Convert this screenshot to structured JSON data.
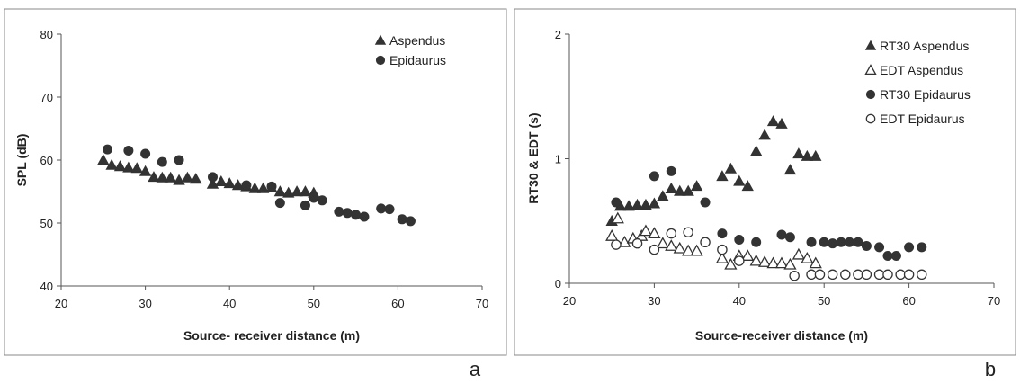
{
  "chart_data": [
    {
      "type": "scatter",
      "panel_label": "a",
      "xlabel": "Source- receiver distance (m)",
      "ylabel": "SPL (dB)",
      "xlim": [
        20,
        70
      ],
      "ylim": [
        40,
        80
      ],
      "xticks": [
        20,
        30,
        40,
        50,
        60,
        70
      ],
      "yticks": [
        40,
        50,
        60,
        70,
        80
      ],
      "legend_position": "top-right",
      "grid": false,
      "series": [
        {
          "name": "Aspendus",
          "marker": "triangle-filled",
          "x": [
            25,
            26,
            27,
            28,
            29,
            30,
            31,
            32,
            33,
            34,
            35,
            36,
            38,
            39,
            40,
            41,
            42,
            43,
            44,
            45,
            46,
            47,
            48,
            49,
            50
          ],
          "y": [
            60,
            59.2,
            59,
            58.8,
            58.7,
            58.2,
            57.3,
            57.2,
            57.2,
            56.8,
            57.2,
            57,
            56.2,
            56.6,
            56.3,
            56,
            55.8,
            55.5,
            55.5,
            55.6,
            55,
            54.8,
            55,
            55,
            54.8
          ]
        },
        {
          "name": "Epidaurus",
          "marker": "circle-filled",
          "x": [
            25.5,
            28,
            30,
            32,
            34,
            38,
            42,
            45,
            46,
            49,
            50,
            51,
            53,
            54,
            55,
            56,
            58,
            59,
            60.5,
            61.5
          ],
          "y": [
            61.7,
            61.5,
            61,
            59.7,
            60,
            57.3,
            56,
            55.8,
            53.2,
            52.8,
            54,
            53.6,
            51.8,
            51.6,
            51.3,
            51,
            52.3,
            52.2,
            50.6,
            50.3
          ]
        }
      ]
    },
    {
      "type": "scatter",
      "panel_label": "b",
      "xlabel": "Source-receiver distance (m)",
      "ylabel": "RT30 & EDT (s)",
      "xlim": [
        20,
        70
      ],
      "ylim": [
        0,
        2
      ],
      "xticks": [
        20,
        30,
        40,
        50,
        60,
        70
      ],
      "yticks": [
        0,
        1,
        2
      ],
      "legend_position": "top-right",
      "grid": false,
      "series": [
        {
          "name": "RT30 Aspendus",
          "marker": "triangle-filled",
          "x": [
            25,
            26,
            27,
            28,
            29,
            30,
            31,
            32,
            33,
            34,
            35,
            38,
            39,
            40,
            41,
            42,
            43,
            44,
            45,
            46,
            47,
            48,
            49
          ],
          "y": [
            0.5,
            0.62,
            0.62,
            0.63,
            0.63,
            0.64,
            0.7,
            0.76,
            0.74,
            0.74,
            0.78,
            0.86,
            0.92,
            0.82,
            0.78,
            1.06,
            1.19,
            1.3,
            1.28,
            0.91,
            1.04,
            1.02,
            1.02
          ]
        },
        {
          "name": "EDT Aspendus",
          "marker": "triangle-open",
          "x": [
            25,
            25.7,
            26.5,
            27.5,
            28.5,
            29,
            30,
            31,
            32,
            33,
            34,
            35,
            38,
            39,
            40,
            41,
            42,
            43,
            44,
            45,
            46,
            47,
            48,
            49
          ],
          "y": [
            0.38,
            0.52,
            0.33,
            0.36,
            0.38,
            0.42,
            0.4,
            0.32,
            0.3,
            0.28,
            0.26,
            0.26,
            0.2,
            0.15,
            0.22,
            0.22,
            0.18,
            0.17,
            0.16,
            0.16,
            0.15,
            0.23,
            0.2,
            0.16
          ]
        },
        {
          "name": "RT30 Epidaurus",
          "marker": "circle-filled",
          "x": [
            25.5,
            30,
            32,
            36,
            38,
            40,
            42,
            45,
            46,
            48.5,
            50,
            51,
            52,
            53,
            54,
            55,
            56.5,
            57.5,
            58.5,
            60,
            61.5
          ],
          "y": [
            0.65,
            0.86,
            0.9,
            0.65,
            0.4,
            0.35,
            0.33,
            0.39,
            0.37,
            0.33,
            0.33,
            0.32,
            0.33,
            0.33,
            0.33,
            0.3,
            0.29,
            0.22,
            0.22,
            0.29,
            0.29
          ]
        },
        {
          "name": "EDT Epidaurus",
          "marker": "circle-open",
          "x": [
            25.5,
            28,
            30,
            32,
            34,
            36,
            38,
            40,
            46.5,
            48.5,
            49.5,
            51,
            52.5,
            54,
            55,
            56.5,
            57.5,
            59,
            60,
            61.5
          ],
          "y": [
            0.31,
            0.32,
            0.27,
            0.4,
            0.41,
            0.33,
            0.27,
            0.18,
            0.06,
            0.07,
            0.07,
            0.07,
            0.07,
            0.07,
            0.07,
            0.07,
            0.07,
            0.07,
            0.07,
            0.07
          ]
        }
      ]
    }
  ]
}
